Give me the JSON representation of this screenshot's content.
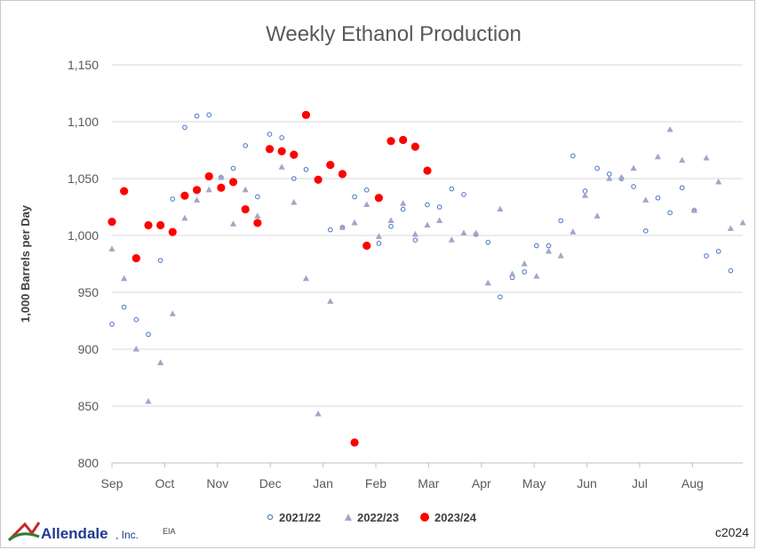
{
  "footer": {
    "logo_text": "Allendale",
    "logo_suffix": ", Inc.",
    "source": "EIA",
    "copyright": "c2024"
  },
  "colors": {
    "s2021": "#4472c4",
    "s2022": "#a5a5c8",
    "s2023": "#ff0000",
    "grid": "#d9d9d9",
    "axis": "#bfbfbf",
    "logo_green": "#2e7d32",
    "logo_red": "#c62828",
    "logo_blue": "#1f3a93"
  },
  "chart_data": {
    "type": "scatter",
    "title": "Weekly Ethanol Production",
    "ylabel": "1,000 Barrels per Day",
    "xlabel": "",
    "ylim": [
      800,
      1150
    ],
    "yticks": [
      800,
      850,
      900,
      950,
      1000,
      1050,
      1100,
      1150
    ],
    "ytick_labels": [
      "800",
      "850",
      "900",
      "950",
      "1,000",
      "1,050",
      "1,100",
      "1,150"
    ],
    "x_unit": "week of marketing year (Sep start)",
    "xlim": [
      0,
      52
    ],
    "xticks": [
      0,
      4.35,
      8.7,
      13.05,
      17.4,
      21.75,
      26.1,
      30.45,
      34.8,
      39.15,
      43.5,
      47.85
    ],
    "xtick_labels": [
      "Sep",
      "Oct",
      "Nov",
      "Dec",
      "Jan",
      "Feb",
      "Mar",
      "Apr",
      "May",
      "Jun",
      "Jul",
      "Aug"
    ],
    "grid": "horizontal",
    "legend_position": "bottom",
    "series": [
      {
        "name": "2021/22",
        "marker": "circle-open",
        "x": [
          0,
          1,
          2,
          3,
          4,
          5,
          6,
          7,
          8,
          9,
          10,
          11,
          12,
          13,
          14,
          15,
          16,
          17,
          18,
          19,
          20,
          21,
          22,
          23,
          24,
          25,
          26,
          27,
          28,
          29,
          30,
          31,
          32,
          33,
          34,
          35,
          36,
          37,
          38,
          39,
          40,
          41,
          42,
          43,
          44,
          45,
          46,
          47,
          48,
          49,
          50,
          51
        ],
        "y": [
          922,
          937,
          926,
          913,
          978,
          1032,
          1095,
          1105,
          1106,
          1051,
          1059,
          1079,
          1034,
          1089,
          1086,
          1050,
          1058,
          1050,
          1005,
          1007,
          1034,
          1040,
          993,
          1008,
          1023,
          996,
          1027,
          1025,
          1041,
          1036,
          1001,
          994,
          946,
          963,
          968,
          991,
          991,
          1013,
          1070,
          1039,
          1059,
          1054,
          1050,
          1043,
          1004,
          1033,
          1020,
          1042,
          1022,
          982,
          986,
          969
        ]
      },
      {
        "name": "2022/23",
        "marker": "triangle",
        "x": [
          0,
          1,
          2,
          3,
          4,
          5,
          6,
          7,
          8,
          9,
          10,
          11,
          12,
          13,
          14,
          15,
          16,
          17,
          18,
          19,
          20,
          21,
          22,
          23,
          24,
          25,
          26,
          27,
          28,
          29,
          30,
          31,
          32,
          33,
          34,
          35,
          36,
          37,
          38,
          39,
          40,
          41,
          42,
          43,
          44,
          45,
          46,
          47,
          48,
          49,
          50,
          51,
          52
        ],
        "y": [
          988,
          962,
          900,
          854,
          888,
          931,
          1015,
          1031,
          1040,
          1051,
          1010,
          1040,
          1017,
          1075,
          1060,
          1029,
          962,
          843,
          942,
          1007,
          1011,
          1027,
          999,
          1013,
          1028,
          1001,
          1009,
          1013,
          996,
          1002,
          1002,
          958,
          1023,
          966,
          975,
          964,
          986,
          982,
          1003,
          1035,
          1017,
          1050,
          1051,
          1059,
          1031,
          1069,
          1093,
          1066,
          1022,
          1068,
          1047,
          1006,
          1011
        ]
      },
      {
        "name": "2023/24",
        "marker": "circle-filled",
        "x": [
          0,
          1,
          2,
          3,
          4,
          5,
          6,
          7,
          8,
          9,
          10,
          11,
          12,
          13,
          14,
          15,
          16,
          17,
          18,
          19,
          20,
          21,
          22,
          23,
          24,
          25,
          26
        ],
        "y": [
          1012,
          1039,
          980,
          1009,
          1009,
          1003,
          1035,
          1040,
          1052,
          1042,
          1047,
          1023,
          1011,
          1076,
          1074,
          1071,
          1106,
          1049,
          1062,
          1054,
          818,
          991,
          1033,
          1083,
          1084,
          1078,
          1057
        ]
      }
    ]
  }
}
